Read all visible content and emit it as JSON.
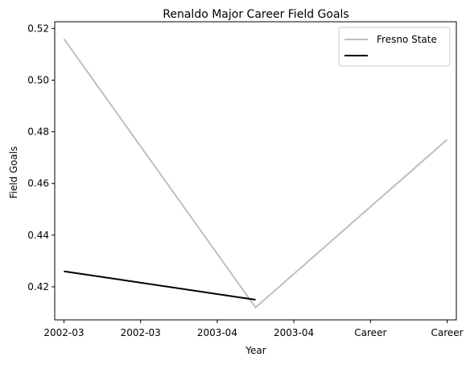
{
  "chart_data": {
    "type": "line",
    "title": "Renaldo Major Career Field Goals",
    "xlabel": "Year",
    "ylabel": "Field Goals",
    "x_tick_labels": [
      "2002-03",
      "2002-03",
      "2003-04",
      "2003-04",
      "Career",
      "Career"
    ],
    "xlim": [
      -0.12,
      5.12
    ],
    "ylim": [
      0.4072,
      0.5226
    ],
    "y_ticks": [
      0.42,
      0.44,
      0.46,
      0.48,
      0.5,
      0.52
    ],
    "y_tick_labels": [
      "0.42",
      "0.44",
      "0.46",
      "0.48",
      "0.50",
      "0.52"
    ],
    "series": [
      {
        "name": "Fresno State",
        "color": "#bfbfbf",
        "x": [
          0,
          2.5,
          5
        ],
        "values": [
          0.516,
          0.412,
          0.477
        ]
      },
      {
        "name": "",
        "color": "#000000",
        "x": [
          0,
          2.5
        ],
        "values": [
          0.426,
          0.415
        ]
      }
    ],
    "legend": {
      "position": "top-right"
    },
    "grid": false
  }
}
